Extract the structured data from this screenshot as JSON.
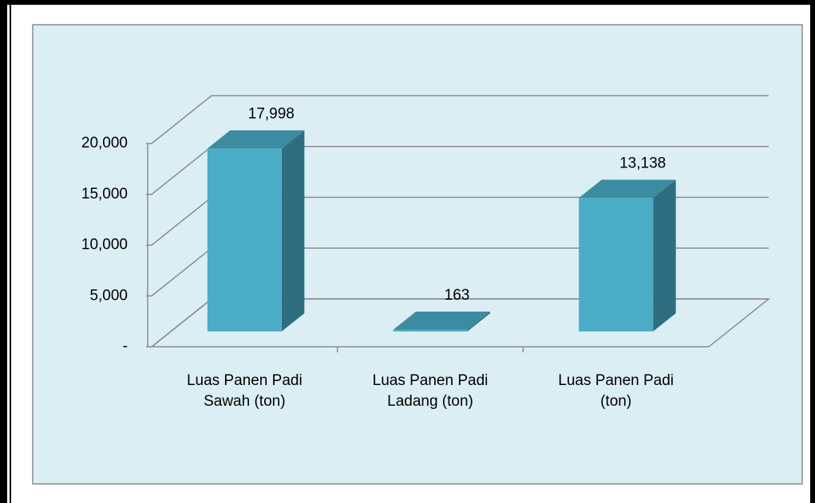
{
  "chart_data": {
    "type": "bar3d",
    "categories": [
      "Luas Panen Padi Sawah (ton)",
      "Luas Panen Padi Ladang (ton)",
      "Luas Panen Padi (ton)"
    ],
    "values": [
      17998,
      163,
      13138
    ],
    "value_labels": [
      "17,998",
      "163",
      "13,138"
    ],
    "color": "#4bacc6",
    "ylim": [
      0,
      20000
    ],
    "yticks": [
      {
        "value": 0,
        "label": "-"
      },
      {
        "value": 5000,
        "label": "5,000"
      },
      {
        "value": 10000,
        "label": "10,000"
      },
      {
        "value": 15000,
        "label": "15,000"
      },
      {
        "value": 20000,
        "label": "20,000"
      }
    ],
    "grid": true
  }
}
